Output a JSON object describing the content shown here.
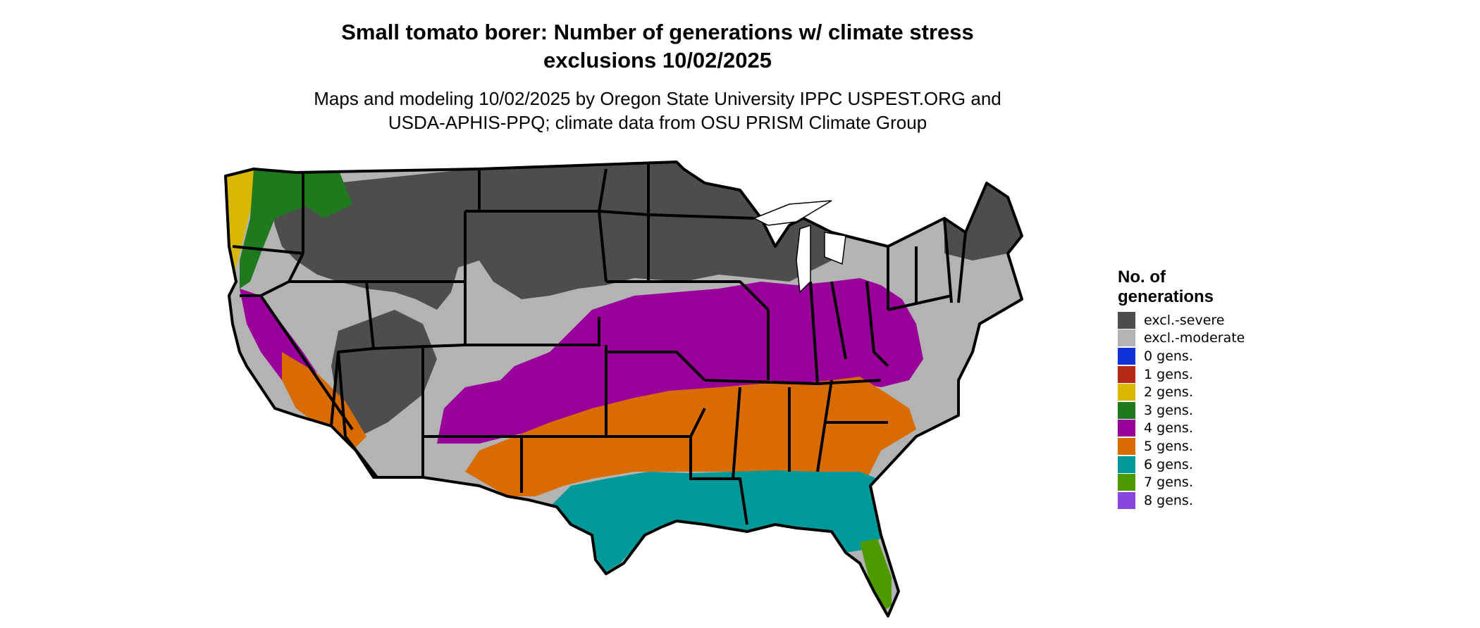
{
  "title": {
    "line1": "Small tomato borer: Number of generations w/ climate stress",
    "line2": "exclusions 10/02/2025"
  },
  "subtitle": {
    "line1": "Maps and modeling 10/02/2025 by Oregon State University IPPC USPEST.ORG and",
    "line2": "USDA-APHIS-PPQ; climate data from OSU PRISM Climate Group"
  },
  "legend": {
    "title_line1": "No. of",
    "title_line2": "generations",
    "items": [
      {
        "label": "excl.-severe",
        "color": "#4d4d4d"
      },
      {
        "label": "excl.-moderate",
        "color": "#b3b3b3"
      },
      {
        "label": "0 gens.",
        "color": "#1030d8"
      },
      {
        "label": "1 gens.",
        "color": "#b22a14"
      },
      {
        "label": "2 gens.",
        "color": "#d8b800"
      },
      {
        "label": "3 gens.",
        "color": "#1f7a1f"
      },
      {
        "label": "4 gens.",
        "color": "#990099"
      },
      {
        "label": "5 gens.",
        "color": "#d96c00"
      },
      {
        "label": "6 gens.",
        "color": "#009999"
      },
      {
        "label": "7 gens.",
        "color": "#4c9900"
      },
      {
        "label": "8 gens.",
        "color": "#8844dd"
      }
    ]
  },
  "colors": {
    "state_border": "#000000",
    "background": "#ffffff"
  }
}
